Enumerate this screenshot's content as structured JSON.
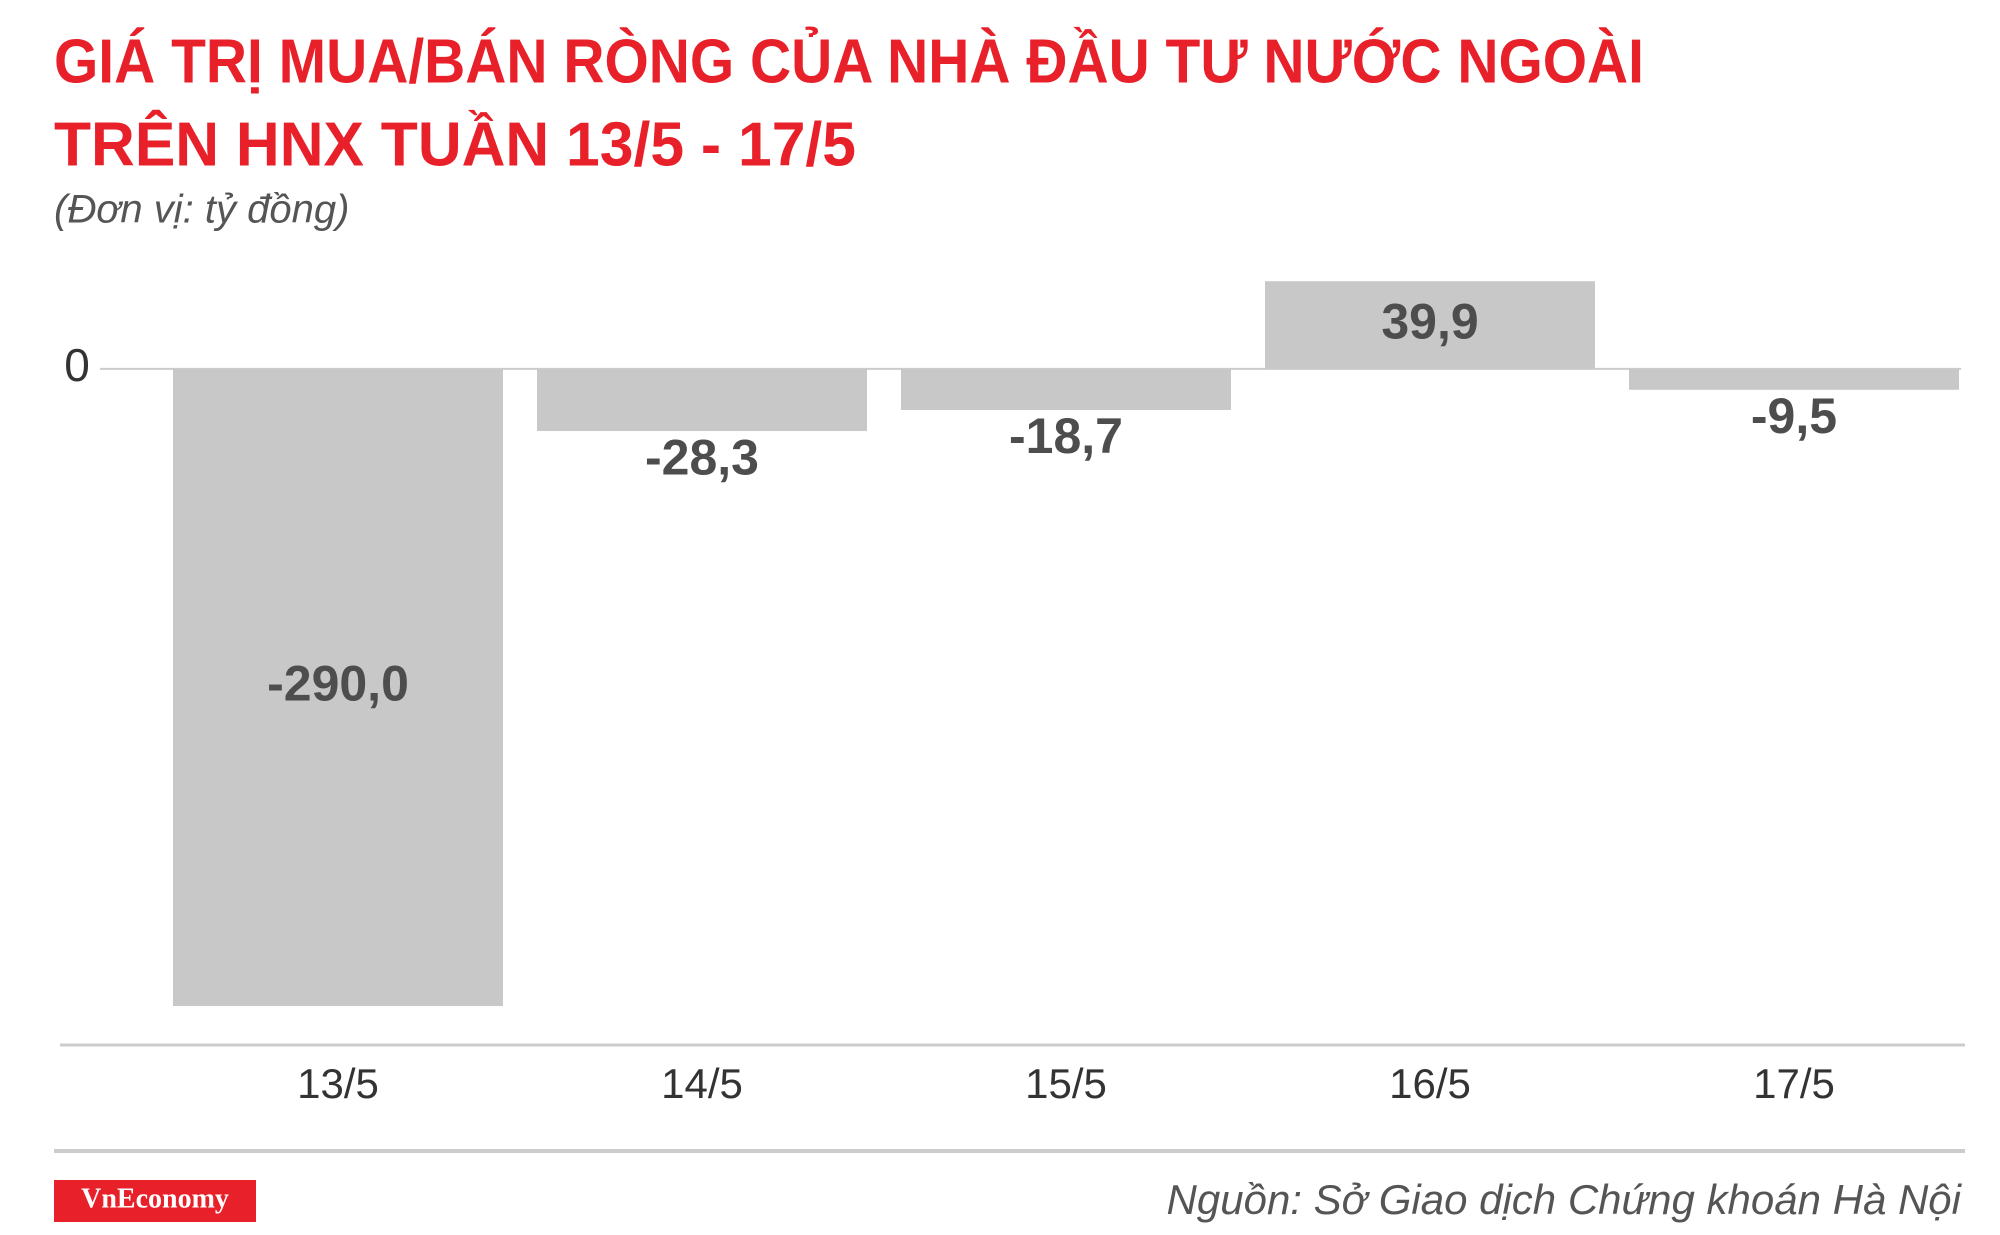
{
  "chart_data": {
    "type": "bar",
    "title": [
      "GIÁ TRỊ MUA/BÁN RÒNG CỦA NHÀ ĐẦU TƯ NƯỚC NGOÀI",
      "TRÊN HNX TUẦN 13/5 - 17/5"
    ],
    "subtitle": "(Đơn vị: tỷ đồng)",
    "categories": [
      "13/5",
      "14/5",
      "15/5",
      "16/5",
      "17/5"
    ],
    "values": [
      -290.0,
      -28.3,
      -18.7,
      39.9,
      -9.5
    ],
    "value_labels": [
      "-290,0",
      "-28,3",
      "-18,7",
      "39,9",
      "-9,5"
    ],
    "color": "#c8c8c8",
    "ylim": [
      -310,
      40
    ],
    "yticks": [
      0
    ],
    "brand": "VnEconomy",
    "source": "Nguồn: Sở Giao dịch Chứng khoán Hà Nội"
  }
}
